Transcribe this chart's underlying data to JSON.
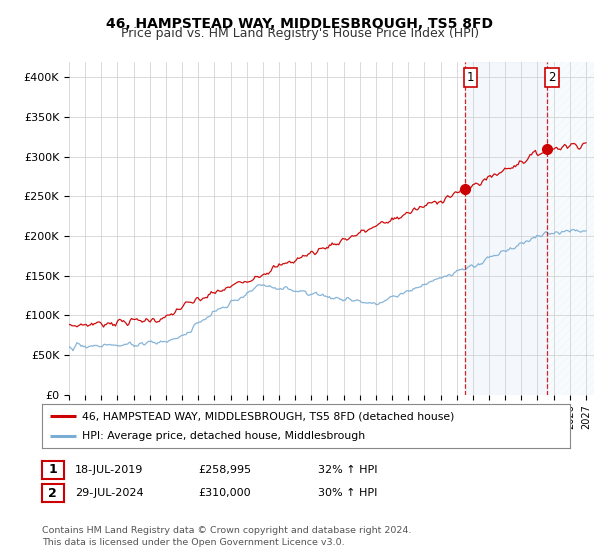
{
  "title": "46, HAMPSTEAD WAY, MIDDLESBROUGH, TS5 8FD",
  "subtitle": "Price paid vs. HM Land Registry's House Price Index (HPI)",
  "ylabel_ticks": [
    "£0",
    "£50K",
    "£100K",
    "£150K",
    "£200K",
    "£250K",
    "£300K",
    "£350K",
    "£400K"
  ],
  "ytick_values": [
    0,
    50000,
    100000,
    150000,
    200000,
    250000,
    300000,
    350000,
    400000
  ],
  "ylim": [
    0,
    420000
  ],
  "xlim_start": 1995.0,
  "xlim_end": 2027.5,
  "grid_color": "#cccccc",
  "background_color": "#ffffff",
  "plot_bg_color": "#ffffff",
  "red_line_color": "#cc0000",
  "blue_line_color": "#7aadd4",
  "marker1_x": 2019.54,
  "marker1_y": 258995,
  "marker1_label": "1",
  "marker2_x": 2024.57,
  "marker2_y": 310000,
  "marker2_label": "2",
  "legend_line1": "46, HAMPSTEAD WAY, MIDDLESBROUGH, TS5 8FD (detached house)",
  "legend_line2": "HPI: Average price, detached house, Middlesbrough",
  "table_row1": [
    "1",
    "18-JUL-2019",
    "£258,995",
    "32% ↑ HPI"
  ],
  "table_row2": [
    "2",
    "29-JUL-2024",
    "£310,000",
    "30% ↑ HPI"
  ],
  "footer": "Contains HM Land Registry data © Crown copyright and database right 2024.\nThis data is licensed under the Open Government Licence v3.0.",
  "title_fontsize": 10,
  "subtitle_fontsize": 9
}
